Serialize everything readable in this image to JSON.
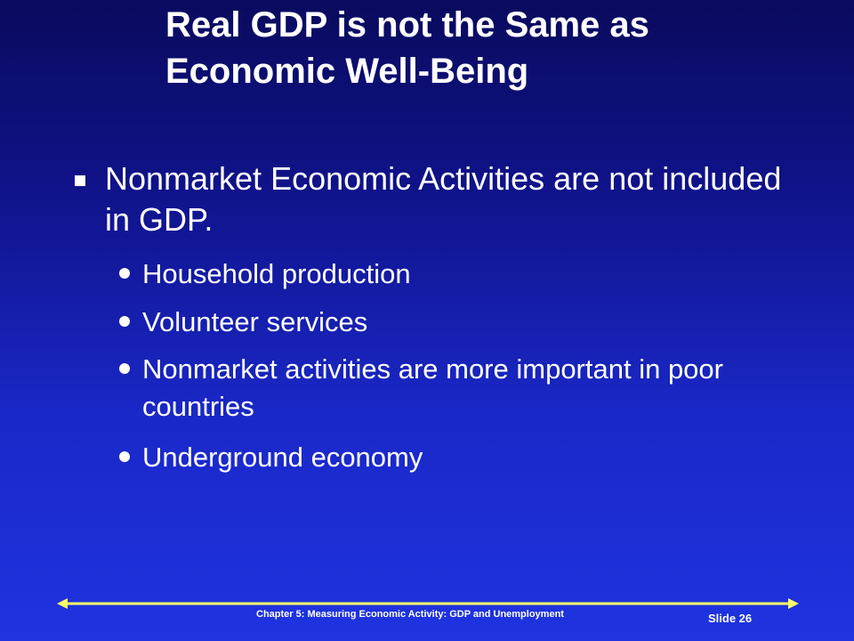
{
  "slide": {
    "title_lines": [
      "Real GDP is not the Same as",
      "Economic Well-Being"
    ],
    "bullets": [
      {
        "text": "Nonmarket Economic Activities are not included in GDP.",
        "sub_bullets": [
          "Household production",
          "Volunteer services",
          "Nonmarket activities are more important in poor countries",
          "Underground economy"
        ]
      }
    ]
  },
  "footer": {
    "chapter": "Chapter 5: Measuring Economic Activity: GDP and Unemployment",
    "slide_number": "Slide 26"
  },
  "colors": {
    "background_top": "#0a0a5e",
    "background_bottom": "#1f33e0",
    "text": "#ffffff",
    "footer_rule": "#ffff66"
  }
}
